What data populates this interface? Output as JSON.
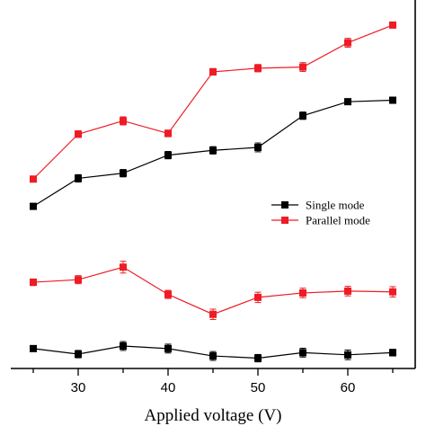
{
  "chart_data": {
    "type": "line",
    "xlabel": "Applied voltage (V)",
    "ylabel": "",
    "xlim": [
      22.5,
      67.5
    ],
    "ylim": [
      0,
      100
    ],
    "x": [
      25,
      30,
      35,
      40,
      45,
      50,
      55,
      60,
      65
    ],
    "x_ticks": [
      30,
      40,
      50,
      60
    ],
    "x_tick_labels": [
      "30",
      "40",
      "50",
      "60"
    ],
    "series": [
      {
        "name": "Single mode",
        "group": "upper",
        "color": "#000000",
        "marker": "square",
        "values": [
          44.0,
          51.6,
          53.0,
          57.9,
          59.2,
          60.0,
          68.6,
          72.4,
          72.8
        ],
        "errors": [
          0.7,
          1.0,
          1.0,
          1.0,
          1.0,
          1.2,
          1.0,
          0.8,
          0.8
        ]
      },
      {
        "name": "Parallel mode",
        "group": "upper",
        "color": "#ee1c25",
        "marker": "square",
        "values": [
          51.4,
          63.6,
          67.2,
          63.8,
          80.5,
          81.5,
          81.8,
          88.4,
          93.2
        ],
        "errors": [
          0.7,
          0.9,
          1.1,
          0.9,
          0.9,
          1.0,
          1.2,
          1.2,
          0.8
        ]
      },
      {
        "name": "Single mode",
        "group": "lower",
        "color": "#000000",
        "marker": "square",
        "values": [
          5.4,
          3.9,
          6.1,
          5.4,
          3.4,
          2.8,
          4.3,
          3.7,
          4.3
        ],
        "errors": [
          0.6,
          1.0,
          1.2,
          1.2,
          1.2,
          1.0,
          1.2,
          1.3,
          0.9
        ]
      },
      {
        "name": "Parallel mode",
        "group": "lower",
        "color": "#ee1c25",
        "marker": "square",
        "values": [
          23.4,
          24.1,
          27.5,
          20.1,
          14.7,
          19.3,
          20.5,
          21.0,
          20.8
        ],
        "errors": [
          0.9,
          1.1,
          1.6,
          1.1,
          1.4,
          1.4,
          1.3,
          1.3,
          1.4
        ]
      }
    ],
    "legend": {
      "placement": "center-right",
      "entries": [
        {
          "label": "Single mode",
          "color": "#000000"
        },
        {
          "label": "Parallel mode",
          "color": "#ee1c25"
        }
      ]
    },
    "grid": false
  }
}
